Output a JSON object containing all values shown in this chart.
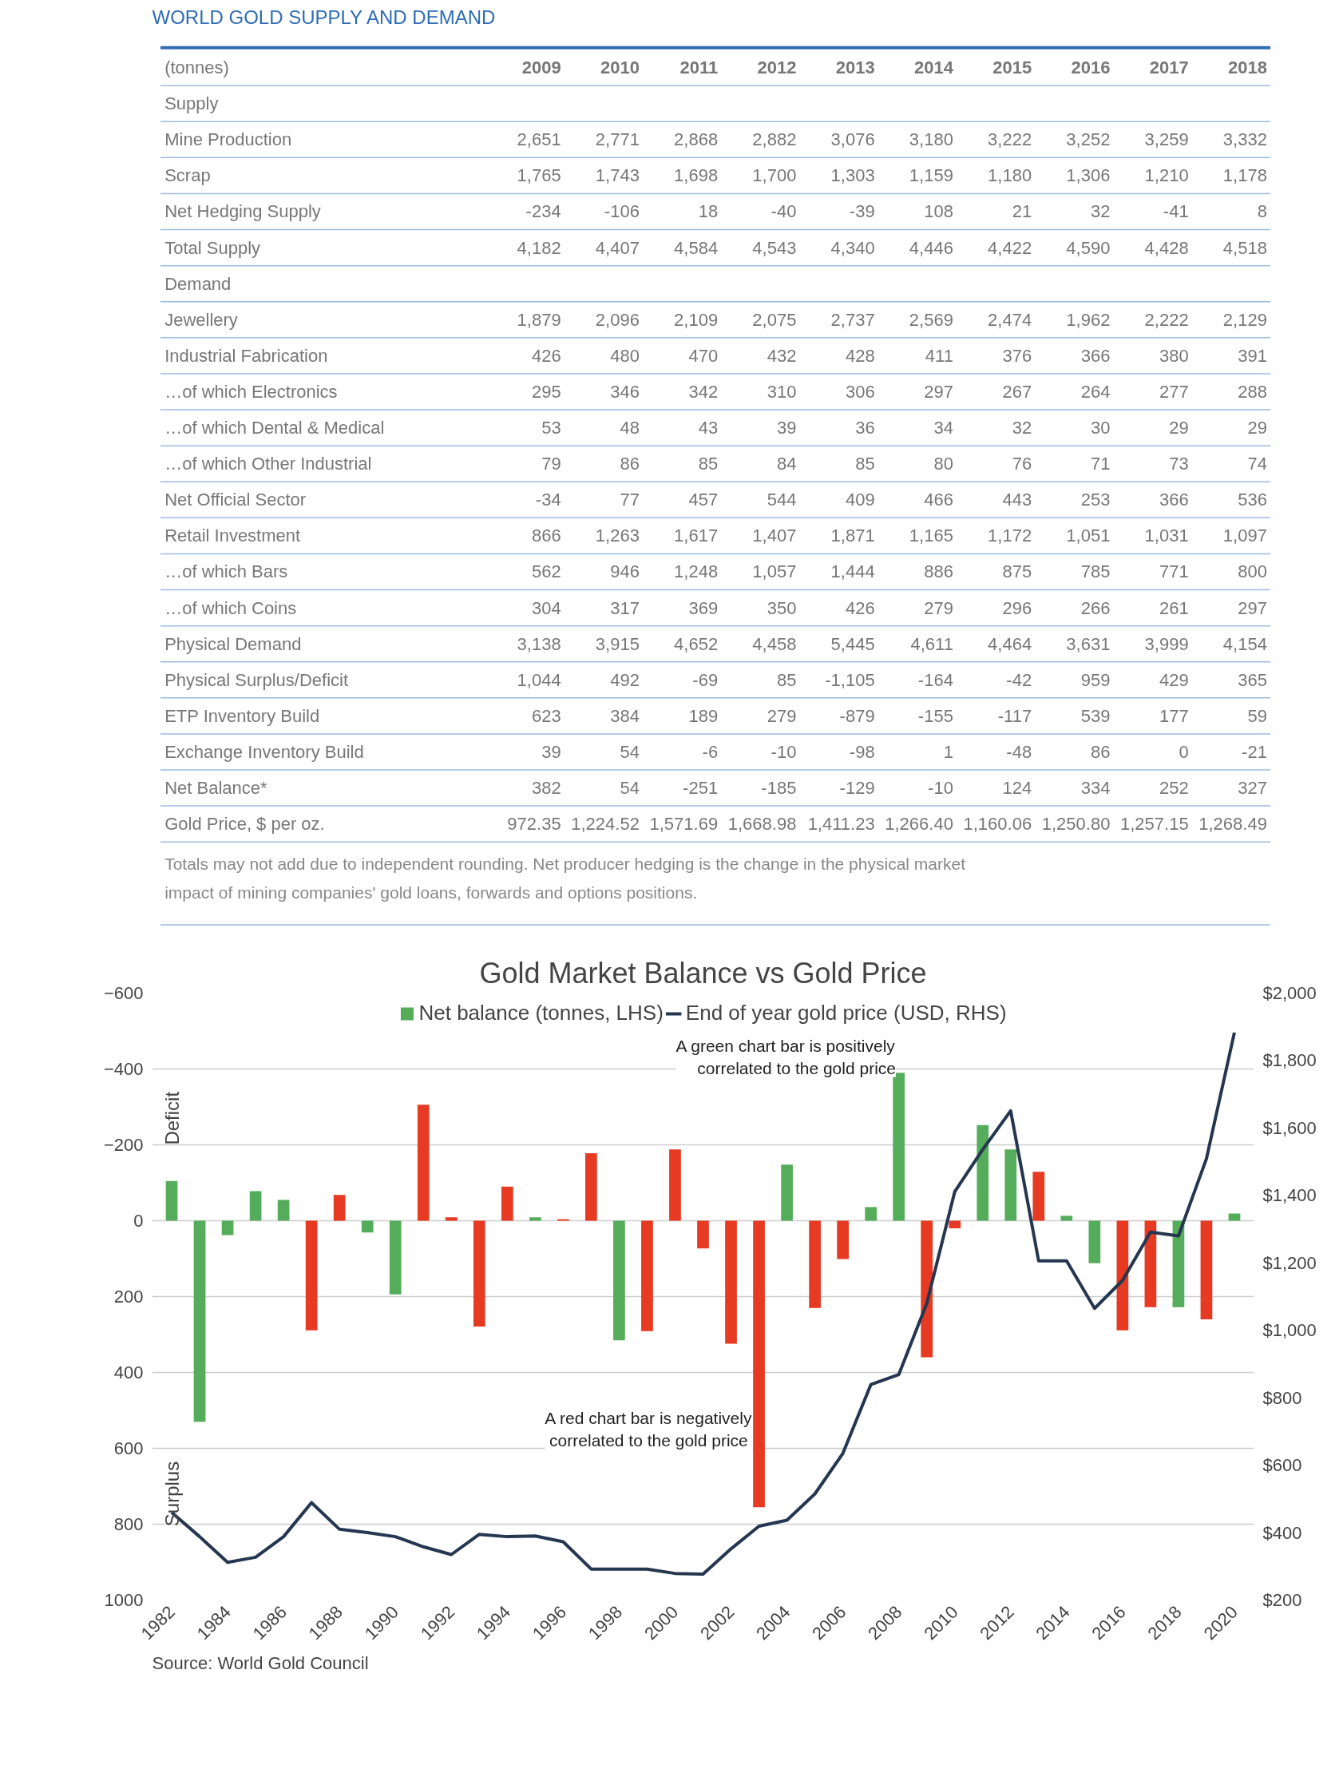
{
  "chart_data": [
    {
      "type": "heatmap",
      "title": "WORLD GOLD SUPPLY AND DEMAND",
      "subtitle": "(tonnes)",
      "data_labels": true,
      "categories": [
        "2009",
        "2010",
        "2011",
        "2012",
        "2013",
        "2014",
        "2015",
        "2016",
        "2017",
        "2018"
      ],
      "y_categories": [
        "Supply",
        "Mine Production",
        "Scrap",
        "Net Hedging Supply",
        "Total Supply",
        "Demand",
        "Jewellery",
        "Industrial Fabrication",
        "…of which Electronics",
        "…of which Dental & Medical",
        "…of which Other Industrial",
        "Net Official Sector",
        "Retail Investment",
        "…of which Bars",
        "…of which Coins",
        "Physical Demand",
        "Physical Surplus/Deficit",
        "ETP Inventory Build",
        "Exchange Inventory Build",
        "Net Balance*",
        "Gold Price, $ per oz."
      ],
      "cells": [
        [
          null,
          null,
          null,
          null,
          null,
          null,
          null,
          null,
          null,
          null
        ],
        [
          2651,
          2771,
          2868,
          2882,
          3076,
          3180,
          3222,
          3252,
          3259,
          3332
        ],
        [
          1765,
          1743,
          1698,
          1700,
          1303,
          1159,
          1180,
          1306,
          1210,
          1178
        ],
        [
          -234,
          -106,
          18,
          -40,
          -39,
          108,
          21,
          32,
          -41,
          8
        ],
        [
          4182,
          4407,
          4584,
          4543,
          4340,
          4446,
          4422,
          4590,
          4428,
          4518
        ],
        [
          null,
          null,
          null,
          null,
          null,
          null,
          null,
          null,
          null,
          null
        ],
        [
          1879,
          2096,
          2109,
          2075,
          2737,
          2569,
          2474,
          1962,
          2222,
          2129
        ],
        [
          426,
          480,
          470,
          432,
          428,
          411,
          376,
          366,
          380,
          391
        ],
        [
          295,
          346,
          342,
          310,
          306,
          297,
          267,
          264,
          277,
          288
        ],
        [
          53,
          48,
          43,
          39,
          36,
          34,
          32,
          30,
          29,
          29
        ],
        [
          79,
          86,
          85,
          84,
          85,
          80,
          76,
          71,
          73,
          74
        ],
        [
          -34,
          77,
          457,
          544,
          409,
          466,
          443,
          253,
          366,
          536
        ],
        [
          866,
          1263,
          1617,
          1407,
          1871,
          1165,
          1172,
          1051,
          1031,
          1097
        ],
        [
          562,
          946,
          1248,
          1057,
          1444,
          886,
          875,
          785,
          771,
          800
        ],
        [
          304,
          317,
          369,
          350,
          426,
          279,
          296,
          266,
          261,
          297
        ],
        [
          3138,
          3915,
          4652,
          4458,
          5445,
          4611,
          4464,
          3631,
          3999,
          4154
        ],
        [
          1044,
          492,
          -69,
          85,
          -1105,
          -164,
          -42,
          959,
          429,
          365
        ],
        [
          623,
          384,
          189,
          279,
          -879,
          -155,
          -117,
          539,
          177,
          59
        ],
        [
          39,
          54,
          -6,
          -10,
          -98,
          1,
          -48,
          86,
          0,
          -21
        ],
        [
          382,
          54,
          -251,
          -185,
          -129,
          -10,
          124,
          334,
          252,
          327
        ],
        [
          972.35,
          1224.52,
          1571.69,
          1668.98,
          1411.23,
          1266.4,
          1160.06,
          1250.8,
          1257.15,
          1268.49
        ]
      ],
      "cell_labels": [
        [
          null,
          null,
          null,
          null,
          null,
          null,
          null,
          null,
          null,
          null
        ],
        [
          "2,651",
          "2,771",
          "2,868",
          "2,882",
          "3,076",
          "3,180",
          "3,222",
          "3,252",
          "3,259",
          "3,332"
        ],
        [
          "1,765",
          "1,743",
          "1,698",
          "1,700",
          "1,303",
          "1,159",
          "1,180",
          "1,306",
          "1,210",
          "1,178"
        ],
        [
          "-234",
          "-106",
          "18",
          "-40",
          "-39",
          "108",
          "21",
          "32",
          "-41",
          "8"
        ],
        [
          "4,182",
          "4,407",
          "4,584",
          "4,543",
          "4,340",
          "4,446",
          "4,422",
          "4,590",
          "4,428",
          "4,518"
        ],
        [
          null,
          null,
          null,
          null,
          null,
          null,
          null,
          null,
          null,
          null
        ],
        [
          "1,879",
          "2,096",
          "2,109",
          "2,075",
          "2,737",
          "2,569",
          "2,474",
          "1,962",
          "2,222",
          "2,129"
        ],
        [
          "426",
          "480",
          "470",
          "432",
          "428",
          "411",
          "376",
          "366",
          "380",
          "391"
        ],
        [
          "295",
          "346",
          "342",
          "310",
          "306",
          "297",
          "267",
          "264",
          "277",
          "288"
        ],
        [
          "53",
          "48",
          "43",
          "39",
          "36",
          "34",
          "32",
          "30",
          "29",
          "29"
        ],
        [
          "79",
          "86",
          "85",
          "84",
          "85",
          "80",
          "76",
          "71",
          "73",
          "74"
        ],
        [
          "-34",
          "77",
          "457",
          "544",
          "409",
          "466",
          "443",
          "253",
          "366",
          "536"
        ],
        [
          "866",
          "1,263",
          "1,617",
          "1,407",
          "1,871",
          "1,165",
          "1,172",
          "1,051",
          "1,031",
          "1,097"
        ],
        [
          "562",
          "946",
          "1,248",
          "1,057",
          "1,444",
          "886",
          "875",
          "785",
          "771",
          "800"
        ],
        [
          "304",
          "317",
          "369",
          "350",
          "426",
          "279",
          "296",
          "266",
          "261",
          "297"
        ],
        [
          "3,138",
          "3,915",
          "4,652",
          "4,458",
          "5,445",
          "4,611",
          "4,464",
          "3,631",
          "3,999",
          "4,154"
        ],
        [
          "1,044",
          "492",
          "-69",
          "85",
          "-1,105",
          "-164",
          "-42",
          "959",
          "429",
          "365"
        ],
        [
          "623",
          "384",
          "189",
          "279",
          "-879",
          "-155",
          "-117",
          "539",
          "177",
          "59"
        ],
        [
          "39",
          "54",
          "-6",
          "-10",
          "-98",
          "1",
          "-48",
          "86",
          "0",
          "-21"
        ],
        [
          "382",
          "54",
          "-251",
          "-185",
          "-129",
          "-10",
          "124",
          "334",
          "252",
          "327"
        ],
        [
          "972.35",
          "1,224.52",
          "1,571.69",
          "1,668.98",
          "1,411.23",
          "1,266.40",
          "1,160.06",
          "1,250.80",
          "1,257.15",
          "1,268.49"
        ]
      ],
      "annotations": [
        "Totals may not add due to independent rounding.  Net producer hedging is the change in the physical market impact of mining companies' gold loans, forwards and options positions."
      ]
    },
    {
      "type": "bar",
      "title": "Gold Market Balance vs Gold Price",
      "legend": "top",
      "grid": "y",
      "x": [
        1982,
        1983,
        1984,
        1985,
        1986,
        1987,
        1988,
        1989,
        1990,
        1991,
        1992,
        1993,
        1994,
        1995,
        1996,
        1997,
        1998,
        1999,
        2000,
        2001,
        2002,
        2003,
        2004,
        2005,
        2006,
        2007,
        2008,
        2009,
        2010,
        2011,
        2012,
        2013,
        2014,
        2015,
        2016,
        2017,
        2018,
        2019,
        2020
      ],
      "xlim": [
        1981.3,
        2020.7
      ],
      "xticks": [
        1982,
        1984,
        1986,
        1988,
        1990,
        1992,
        1994,
        1996,
        1998,
        2000,
        2002,
        2004,
        2006,
        2008,
        2010,
        2012,
        2014,
        2016,
        2018,
        2020
      ],
      "ylim": [
        1000,
        -600
      ],
      "yticks": [
        -600,
        -400,
        -200,
        0,
        200,
        400,
        600,
        800,
        1000
      ],
      "y2lim": [
        200,
        2000
      ],
      "y2ticks": [
        {
          "value": 200,
          "label": "$200"
        },
        {
          "value": 400,
          "label": "$400"
        },
        {
          "value": 600,
          "label": "$600"
        },
        {
          "value": 800,
          "label": "$800"
        },
        {
          "value": 1000,
          "label": "$1,000"
        },
        {
          "value": 1200,
          "label": "$1,200"
        },
        {
          "value": 1400,
          "label": "$1,400"
        },
        {
          "value": 1600,
          "label": "$1,600"
        },
        {
          "value": 1800,
          "label": "$1,800"
        },
        {
          "value": 2000,
          "label": "$2,000"
        }
      ],
      "series": [
        {
          "name": "Net balance (tonnes, LHS)",
          "type": "bar",
          "values": [
            -105,
            530,
            38,
            -78,
            -55,
            289,
            -68,
            31,
            194,
            -306,
            -9,
            279,
            -90,
            -9,
            -4,
            -178,
            315,
            291,
            -188,
            73,
            324,
            755,
            -148,
            230,
            101,
            -36,
            -390,
            360,
            20,
            -252,
            -188,
            -129,
            -13,
            112,
            289,
            228,
            228,
            260,
            -19
          ],
          "colors": [
            "#55ad5b",
            "#55ad5b",
            "#55ad5b",
            "#55ad5b",
            "#55ad5b",
            "#e63a22",
            "#e63a22",
            "#55ad5b",
            "#55ad5b",
            "#e63a22",
            "#e63a22",
            "#e63a22",
            "#e63a22",
            "#55ad5b",
            "#e63a22",
            "#e63a22",
            "#55ad5b",
            "#e63a22",
            "#e63a22",
            "#e63a22",
            "#e63a22",
            "#e63a22",
            "#55ad5b",
            "#e63a22",
            "#e63a22",
            "#55ad5b",
            "#55ad5b",
            "#e63a22",
            "#e63a22",
            "#55ad5b",
            "#55ad5b",
            "#e63a22",
            "#55ad5b",
            "#55ad5b",
            "#e63a22",
            "#e63a22",
            "#55ad5b",
            "#e63a22",
            "#55ad5b"
          ]
        },
        {
          "name": "End of year gold price (USD, RHS)",
          "type": "line",
          "axis": "y2",
          "color": "#253650",
          "values": [
            460,
            388,
            312,
            327,
            388,
            489,
            410,
            400,
            388,
            358,
            335,
            395,
            388,
            390,
            373,
            292,
            292,
            292,
            279,
            277,
            352,
            419,
            437,
            515,
            635,
            839,
            869,
            1080,
            1411,
            1536,
            1651,
            1206,
            1206,
            1065,
            1148,
            1291,
            1280,
            1509,
            1883
          ]
        }
      ],
      "annotations": [
        "Deficit",
        "Surplus",
        "A green chart bar is positively\ncorrelated to the gold price",
        "A red chart bar is negatively\ncorrelated to  the gold price",
        "Source: World Gold Council"
      ]
    }
  ]
}
